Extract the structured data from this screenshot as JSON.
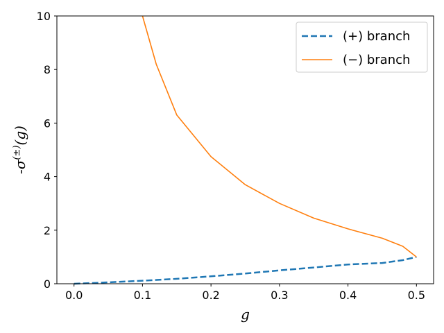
{
  "chart_data": {
    "type": "line",
    "title": "",
    "xlabel": "g",
    "ylabel": "-σ(±)(g)",
    "ylabel_parts": {
      "prefix": "-σ",
      "superscript": "(±)",
      "suffix": "(g)"
    },
    "xlim": [
      -0.025,
      0.525
    ],
    "ylim": [
      0,
      10
    ],
    "xticks": [
      0.0,
      0.1,
      0.2,
      0.3,
      0.4,
      0.5
    ],
    "xtick_labels": [
      "0.0",
      "0.1",
      "0.2",
      "0.3",
      "0.4",
      "0.5"
    ],
    "yticks": [
      0,
      2,
      4,
      6,
      8,
      10
    ],
    "ytick_labels": [
      "0",
      "2",
      "4",
      "6",
      "8",
      "10"
    ],
    "grid": false,
    "legend_position": "top-right",
    "series": [
      {
        "name": "(+) branch",
        "color": "#1f77b4",
        "style": "dashed",
        "x": [
          0.0,
          0.05,
          0.1,
          0.15,
          0.2,
          0.25,
          0.3,
          0.35,
          0.4,
          0.45,
          0.48,
          0.5
        ],
        "y": [
          0.0,
          0.053,
          0.113,
          0.184,
          0.276,
          0.382,
          0.5,
          0.605,
          0.72,
          0.775,
          0.88,
          1.0
        ]
      },
      {
        "name": "(−) branch",
        "color": "#ff7f0e",
        "style": "solid",
        "x": [
          0.1,
          0.12,
          0.15,
          0.2,
          0.25,
          0.3,
          0.35,
          0.4,
          0.45,
          0.48,
          0.5
        ],
        "y": [
          10.0,
          8.2,
          6.3,
          4.75,
          3.7,
          3.0,
          2.45,
          2.05,
          1.7,
          1.4,
          1.0
        ]
      }
    ]
  }
}
